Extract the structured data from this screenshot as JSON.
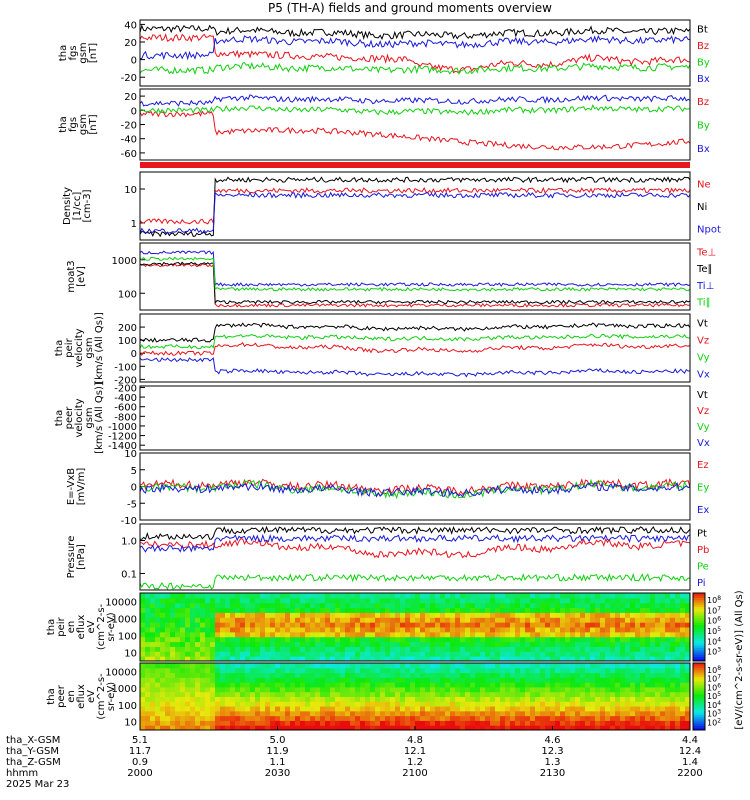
{
  "title": "P5 (TH-A) fields and ground moments overview",
  "time_axis": {
    "rows": [
      {
        "label": "tha_X-GSM",
        "values": [
          "5.1",
          "5.0",
          "4.8",
          "4.6",
          "4.4"
        ]
      },
      {
        "label": "tha_Y-GSM",
        "values": [
          "11.7",
          "11.9",
          "12.1",
          "12.3",
          "12.4"
        ]
      },
      {
        "label": "tha_Z-GSM",
        "values": [
          "0.9",
          "1.1",
          "1.2",
          "1.3",
          "1.4"
        ]
      },
      {
        "label": "hhmm",
        "values": [
          "2000",
          "2030",
          "2100",
          "2130",
          "2200"
        ]
      }
    ],
    "date": "2025 Mar 23"
  },
  "colors": {
    "black": "#000000",
    "red": "#e8141e",
    "green": "#10d010",
    "blue": "#1a1ad8"
  },
  "chart_data": [
    {
      "type": "line",
      "ylabel_lines": [
        "tha",
        "fgs",
        "gsm",
        "[nT]"
      ],
      "ylim": [
        -30,
        45
      ],
      "ticks": [
        -20,
        0,
        20,
        40
      ],
      "legend": [
        {
          "name": "Bt",
          "color": "black"
        },
        {
          "name": "Bz",
          "color": "red"
        },
        {
          "name": "By",
          "color": "green"
        },
        {
          "name": "Bx",
          "color": "blue"
        }
      ]
    },
    {
      "type": "line",
      "ylabel_lines": [
        "tha",
        "fgs",
        "gsm",
        "[nT]"
      ],
      "ylim": [
        -70,
        30
      ],
      "ticks": [
        -60,
        -40,
        -20,
        0,
        20
      ],
      "legend": [
        {
          "name": "Bz",
          "color": "red"
        },
        {
          "name": "By",
          "color": "green"
        },
        {
          "name": "Bx",
          "color": "blue"
        }
      ]
    },
    {
      "type": "line",
      "ylabel_lines": [
        "Density",
        "[1/cc]",
        "[cm-3]"
      ],
      "scale": "log",
      "ticks": [
        "1",
        "10"
      ],
      "legend": [
        {
          "name": "Ne",
          "color": "red"
        },
        {
          "name": "Ni",
          "color": "black"
        },
        {
          "name": "Npot",
          "color": "blue"
        }
      ]
    },
    {
      "type": "line",
      "ylabel_lines": [
        "moat3",
        "[eV]"
      ],
      "scale": "log",
      "ticks": [
        "100",
        "1000"
      ],
      "legend": [
        {
          "name": "Te⊥",
          "color": "red"
        },
        {
          "name": "Te∥",
          "color": "black"
        },
        {
          "name": "Ti⊥",
          "color": "blue"
        },
        {
          "name": "Ti∥",
          "color": "green"
        }
      ]
    },
    {
      "type": "line",
      "ylabel_lines": [
        "tha",
        "peir",
        "velocity",
        "gsm",
        "[km/s (All Qs)]"
      ],
      "ylim": [
        -220,
        300
      ],
      "ticks": [
        -200,
        -100,
        0,
        100,
        200
      ],
      "legend": [
        {
          "name": "Vt",
          "color": "black"
        },
        {
          "name": "Vz",
          "color": "red"
        },
        {
          "name": "Vy",
          "color": "green"
        },
        {
          "name": "Vx",
          "color": "blue"
        }
      ]
    },
    {
      "type": "line",
      "ylabel_lines": [
        "tha",
        "peer",
        "velocity",
        "gsm",
        "[km/s (All Qs)]"
      ],
      "ylim": [
        -1500,
        -170
      ],
      "ticks": [
        -200,
        -400,
        -600,
        -800,
        -1000,
        -1200,
        -1400
      ],
      "legend": [
        {
          "name": "Vt",
          "color": "black"
        },
        {
          "name": "Vz",
          "color": "red"
        },
        {
          "name": "Vy",
          "color": "green"
        },
        {
          "name": "Vx",
          "color": "blue"
        }
      ]
    },
    {
      "type": "line",
      "ylabel_lines": [
        "E=-VxB",
        "[mV/m]"
      ],
      "ylim": [
        -10,
        10
      ],
      "ticks": [
        -10,
        -5,
        0,
        5,
        10
      ],
      "legend": [
        {
          "name": "Ez",
          "color": "red"
        },
        {
          "name": "Ey",
          "color": "green"
        },
        {
          "name": "Ex",
          "color": "blue"
        }
      ]
    },
    {
      "type": "line",
      "ylabel_lines": [
        "Pressure",
        "[nPa]"
      ],
      "scale": "log",
      "ticks": [
        "0.1",
        "1.0"
      ],
      "legend": [
        {
          "name": "Pt",
          "color": "black"
        },
        {
          "name": "Pb",
          "color": "red"
        },
        {
          "name": "Pe",
          "color": "green"
        },
        {
          "name": "Pi",
          "color": "blue"
        }
      ]
    },
    {
      "type": "heatmap",
      "ylabel_lines": [
        "tha",
        "peir",
        "en",
        "eflux",
        "eV",
        "(cm^2-s-",
        "sr-eV)"
      ],
      "scale": "log",
      "ticks": [
        "10",
        "100",
        "1000",
        "10000"
      ]
    },
    {
      "type": "heatmap",
      "ylabel_lines": [
        "tha",
        "peer",
        "en",
        "eflux",
        "eV",
        "(cm^2-s-",
        "sr-eV)"
      ],
      "scale": "log",
      "ticks": [
        "10",
        "100",
        "1000",
        "10000"
      ]
    }
  ],
  "colorbar": {
    "label": "[eV/(cm^2-s-sr-eV)] (All Qs)",
    "exponents_top": [
      "8",
      "7",
      "6",
      "5",
      "4",
      "3"
    ],
    "exponents_bottom": [
      "8",
      "7",
      "6",
      "5",
      "4",
      "3",
      "2"
    ]
  }
}
